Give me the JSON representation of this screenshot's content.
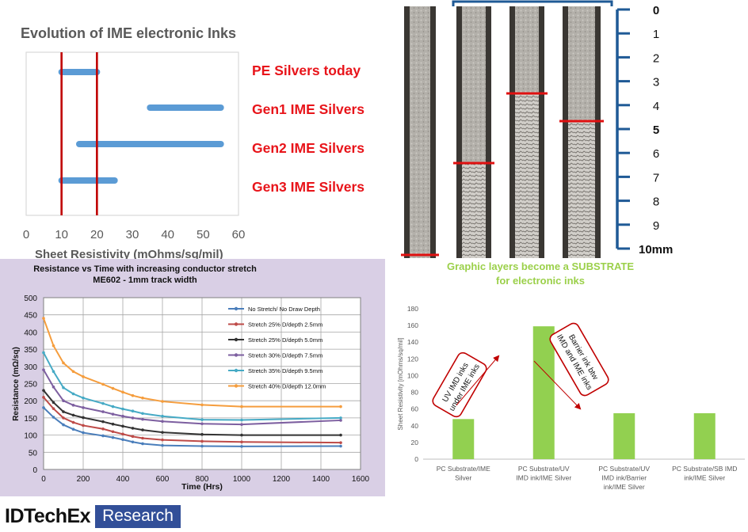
{
  "chart_data": [
    {
      "type": "bar",
      "orientation": "horizontal-range",
      "title": "Evolution of IME electronic Inks",
      "xlabel": "Sheet Resistivity (mOhms/sq/mil)",
      "xlim": [
        0,
        60
      ],
      "xticks": [
        "0",
        "10",
        "20",
        "30",
        "40",
        "50",
        "60"
      ],
      "categories": [
        "PE Silvers today",
        "Gen1 IME Silvers",
        "Gen2 IME Silvers",
        "Gen3 IME Silvers"
      ],
      "ranges": [
        [
          10,
          20
        ],
        [
          35,
          55
        ],
        [
          15,
          55
        ],
        [
          10,
          25
        ]
      ],
      "reference_lines": [
        10,
        20
      ],
      "colors": {
        "bar": "#5b9bd5",
        "line": "#c00000",
        "labels": "#e8141a"
      },
      "grid": false
    },
    {
      "type": "line",
      "title": "Resistance vs Time with increasing conductor stretch",
      "subtitle": "ME602 - 1mm track width",
      "xlabel": "Time (Hrs)",
      "ylabel": "Resistance (mΩ/sq)",
      "xlim": [
        0,
        1600
      ],
      "ylim": [
        0,
        500
      ],
      "xticks": [
        "0",
        "200",
        "400",
        "600",
        "800",
        "1000",
        "1200",
        "1400",
        "1600"
      ],
      "yticks": [
        "0",
        "50",
        "100",
        "150",
        "200",
        "250",
        "300",
        "350",
        "400",
        "450",
        "500"
      ],
      "grid": true,
      "legend": "top-right",
      "x": [
        0,
        50,
        100,
        150,
        200,
        300,
        350,
        400,
        450,
        500,
        600,
        800,
        1000,
        1500
      ],
      "series": [
        {
          "name": "No Stretch/ No Draw Depth",
          "color": "#4a7ebb",
          "values": [
            180,
            152,
            130,
            117,
            107,
            98,
            93,
            87,
            80,
            75,
            70,
            68,
            67,
            68
          ]
        },
        {
          "name": "Stretch 25% D/depth 2.5mm",
          "color": "#be4b48",
          "values": [
            210,
            177,
            150,
            137,
            128,
            118,
            110,
            103,
            96,
            91,
            86,
            82,
            80,
            78
          ]
        },
        {
          "name": "Stretch 25% D/depth 5.0mm",
          "color": "#333333",
          "values": [
            230,
            195,
            168,
            158,
            151,
            139,
            132,
            126,
            120,
            115,
            108,
            102,
            100,
            100
          ]
        },
        {
          "name": "Stretch 30% D/depth 7.5mm",
          "color": "#7d5fa0",
          "values": [
            290,
            240,
            200,
            187,
            180,
            168,
            161,
            155,
            150,
            146,
            140,
            133,
            131,
            143
          ]
        },
        {
          "name": "Stretch 35% D/depth 9.5mm",
          "color": "#46aac5",
          "values": [
            340,
            285,
            238,
            220,
            208,
            192,
            183,
            176,
            170,
            163,
            155,
            145,
            144,
            150
          ]
        },
        {
          "name": "Stretch 40% D/depth 12.0mm",
          "color": "#f59d3d",
          "values": [
            440,
            360,
            310,
            285,
            270,
            248,
            236,
            225,
            215,
            208,
            198,
            188,
            183,
            183
          ]
        }
      ]
    },
    {
      "type": "bar",
      "ylabel": "Sheet Resistivity [mOhms/sq/mil]",
      "ylim": [
        0,
        180
      ],
      "yticks": [
        "0",
        "20",
        "40",
        "60",
        "80",
        "100",
        "120",
        "140",
        "160",
        "180"
      ],
      "categories": [
        "PC Substrate/IME Silver",
        "PC Substrate/UV IMD ink/IME Silver",
        "PC Substrate/UV IMD ink/Barrier ink/IME Silver",
        "PC Substrate/SB IMD ink/IME Silver"
      ],
      "category_lines": [
        [
          "PC Substrate/IME",
          "Silver"
        ],
        [
          "PC Substrate/UV",
          "IMD ink/IME Silver"
        ],
        [
          "PC Substrate/UV",
          "IMD ink/Barrier",
          "ink/IME Silver"
        ],
        [
          "PC Substrate/SB IMD",
          "ink/IME Silver"
        ]
      ],
      "values": [
        48,
        159,
        55,
        55
      ],
      "annotations": [
        {
          "lines": [
            "UV IMD inks",
            "under IME inks"
          ]
        },
        {
          "lines": [
            "Barrier ink btw",
            "IMD and IME inks"
          ]
        }
      ],
      "colors": {
        "bar": "#92d050",
        "callout": "#c00000"
      },
      "grid": false
    }
  ],
  "photo_panel": {
    "scale_ticks": [
      "0",
      "1",
      "2",
      "3",
      "4",
      "5",
      "6",
      "7",
      "8",
      "9",
      "10mm"
    ],
    "caption_lines": [
      "Graphic layers become a SUBSTRATE",
      "for electronic inks"
    ],
    "colors": {
      "scale": "#1f5a96",
      "marker": "#e01010",
      "caption": "#9bd04a"
    }
  },
  "logo": {
    "name": "IDTechEx",
    "tag": "Research"
  }
}
